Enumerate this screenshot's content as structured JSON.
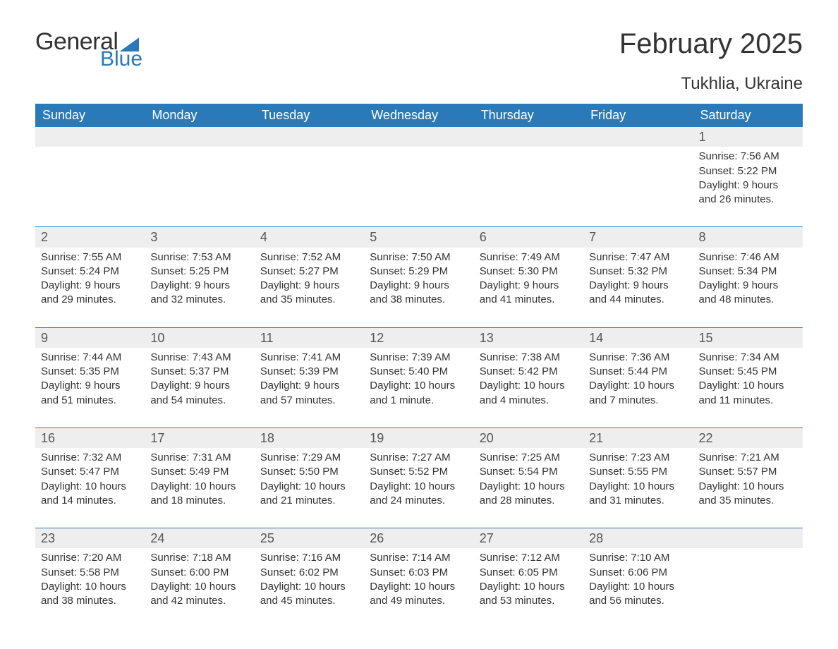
{
  "logo": {
    "word1": "General",
    "word2": "Blue"
  },
  "title": "February 2025",
  "location": "Tukhlia, Ukraine",
  "colors": {
    "header_bg": "#2a7ab9",
    "header_text": "#ffffff",
    "daynum_bg": "#eeeeee",
    "text": "#333333",
    "accent": "#2a7ab9"
  },
  "columns": [
    "Sunday",
    "Monday",
    "Tuesday",
    "Wednesday",
    "Thursday",
    "Friday",
    "Saturday"
  ],
  "weeks": [
    [
      null,
      null,
      null,
      null,
      null,
      null,
      {
        "n": "1",
        "sr": "Sunrise: 7:56 AM",
        "ss": "Sunset: 5:22 PM",
        "dl": "Daylight: 9 hours and 26 minutes."
      }
    ],
    [
      {
        "n": "2",
        "sr": "Sunrise: 7:55 AM",
        "ss": "Sunset: 5:24 PM",
        "dl": "Daylight: 9 hours and 29 minutes."
      },
      {
        "n": "3",
        "sr": "Sunrise: 7:53 AM",
        "ss": "Sunset: 5:25 PM",
        "dl": "Daylight: 9 hours and 32 minutes."
      },
      {
        "n": "4",
        "sr": "Sunrise: 7:52 AM",
        "ss": "Sunset: 5:27 PM",
        "dl": "Daylight: 9 hours and 35 minutes."
      },
      {
        "n": "5",
        "sr": "Sunrise: 7:50 AM",
        "ss": "Sunset: 5:29 PM",
        "dl": "Daylight: 9 hours and 38 minutes."
      },
      {
        "n": "6",
        "sr": "Sunrise: 7:49 AM",
        "ss": "Sunset: 5:30 PM",
        "dl": "Daylight: 9 hours and 41 minutes."
      },
      {
        "n": "7",
        "sr": "Sunrise: 7:47 AM",
        "ss": "Sunset: 5:32 PM",
        "dl": "Daylight: 9 hours and 44 minutes."
      },
      {
        "n": "8",
        "sr": "Sunrise: 7:46 AM",
        "ss": "Sunset: 5:34 PM",
        "dl": "Daylight: 9 hours and 48 minutes."
      }
    ],
    [
      {
        "n": "9",
        "sr": "Sunrise: 7:44 AM",
        "ss": "Sunset: 5:35 PM",
        "dl": "Daylight: 9 hours and 51 minutes."
      },
      {
        "n": "10",
        "sr": "Sunrise: 7:43 AM",
        "ss": "Sunset: 5:37 PM",
        "dl": "Daylight: 9 hours and 54 minutes."
      },
      {
        "n": "11",
        "sr": "Sunrise: 7:41 AM",
        "ss": "Sunset: 5:39 PM",
        "dl": "Daylight: 9 hours and 57 minutes."
      },
      {
        "n": "12",
        "sr": "Sunrise: 7:39 AM",
        "ss": "Sunset: 5:40 PM",
        "dl": "Daylight: 10 hours and 1 minute."
      },
      {
        "n": "13",
        "sr": "Sunrise: 7:38 AM",
        "ss": "Sunset: 5:42 PM",
        "dl": "Daylight: 10 hours and 4 minutes."
      },
      {
        "n": "14",
        "sr": "Sunrise: 7:36 AM",
        "ss": "Sunset: 5:44 PM",
        "dl": "Daylight: 10 hours and 7 minutes."
      },
      {
        "n": "15",
        "sr": "Sunrise: 7:34 AM",
        "ss": "Sunset: 5:45 PM",
        "dl": "Daylight: 10 hours and 11 minutes."
      }
    ],
    [
      {
        "n": "16",
        "sr": "Sunrise: 7:32 AM",
        "ss": "Sunset: 5:47 PM",
        "dl": "Daylight: 10 hours and 14 minutes."
      },
      {
        "n": "17",
        "sr": "Sunrise: 7:31 AM",
        "ss": "Sunset: 5:49 PM",
        "dl": "Daylight: 10 hours and 18 minutes."
      },
      {
        "n": "18",
        "sr": "Sunrise: 7:29 AM",
        "ss": "Sunset: 5:50 PM",
        "dl": "Daylight: 10 hours and 21 minutes."
      },
      {
        "n": "19",
        "sr": "Sunrise: 7:27 AM",
        "ss": "Sunset: 5:52 PM",
        "dl": "Daylight: 10 hours and 24 minutes."
      },
      {
        "n": "20",
        "sr": "Sunrise: 7:25 AM",
        "ss": "Sunset: 5:54 PM",
        "dl": "Daylight: 10 hours and 28 minutes."
      },
      {
        "n": "21",
        "sr": "Sunrise: 7:23 AM",
        "ss": "Sunset: 5:55 PM",
        "dl": "Daylight: 10 hours and 31 minutes."
      },
      {
        "n": "22",
        "sr": "Sunrise: 7:21 AM",
        "ss": "Sunset: 5:57 PM",
        "dl": "Daylight: 10 hours and 35 minutes."
      }
    ],
    [
      {
        "n": "23",
        "sr": "Sunrise: 7:20 AM",
        "ss": "Sunset: 5:58 PM",
        "dl": "Daylight: 10 hours and 38 minutes."
      },
      {
        "n": "24",
        "sr": "Sunrise: 7:18 AM",
        "ss": "Sunset: 6:00 PM",
        "dl": "Daylight: 10 hours and 42 minutes."
      },
      {
        "n": "25",
        "sr": "Sunrise: 7:16 AM",
        "ss": "Sunset: 6:02 PM",
        "dl": "Daylight: 10 hours and 45 minutes."
      },
      {
        "n": "26",
        "sr": "Sunrise: 7:14 AM",
        "ss": "Sunset: 6:03 PM",
        "dl": "Daylight: 10 hours and 49 minutes."
      },
      {
        "n": "27",
        "sr": "Sunrise: 7:12 AM",
        "ss": "Sunset: 6:05 PM",
        "dl": "Daylight: 10 hours and 53 minutes."
      },
      {
        "n": "28",
        "sr": "Sunrise: 7:10 AM",
        "ss": "Sunset: 6:06 PM",
        "dl": "Daylight: 10 hours and 56 minutes."
      },
      null
    ]
  ]
}
